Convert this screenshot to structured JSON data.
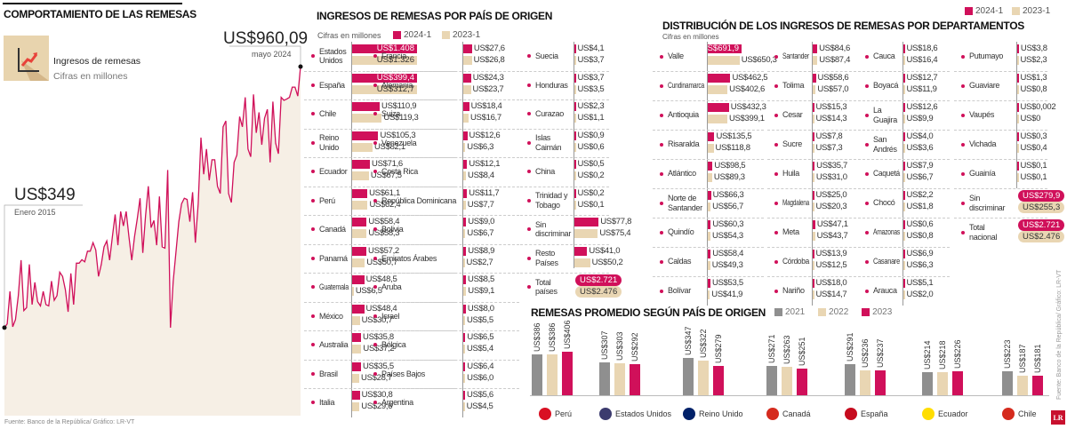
{
  "colors": {
    "y2024": "#d0105a",
    "y2023": "#e9d6b3",
    "gray": "#8f8f8f",
    "area": "#f6efe5",
    "line": "#d0105a"
  },
  "left": {
    "title": "COMPORTAMIENTO DE LAS REMESAS",
    "icon": "chart-up-icon",
    "legend_title": "Ingresos de remesas",
    "legend_sub": "Cifras en millones",
    "start_value": "US$349",
    "start_label": "Enero 2015",
    "end_value": "US$960,09",
    "end_label": "mayo 2024",
    "source": "Fuente: Banco de la República/ Gráfico: LR-VT"
  },
  "chart_data": [
    {
      "type": "area",
      "title": "COMPORTAMIENTO DE LAS REMESAS",
      "ylabel": "Cifras en millones",
      "x_start": "Enero 2015",
      "x_end": "mayo 2024",
      "ylim": [
        143,
        960
      ],
      "values": [
        349,
        358,
        434,
        351,
        368,
        424,
        507,
        389,
        396,
        497,
        403,
        455,
        410,
        400,
        434,
        403,
        400,
        458,
        413,
        424,
        479,
        469,
        438,
        386,
        476,
        403,
        500,
        500,
        508,
        503,
        528,
        528,
        548,
        531,
        469,
        497,
        538,
        552,
        507,
        562,
        614,
        542,
        621,
        587,
        621,
        562,
        507,
        562,
        604,
        652,
        524,
        611,
        680,
        583,
        600,
        542,
        656,
        538,
        535,
        718,
        349,
        458,
        528,
        597,
        639,
        652,
        649,
        597,
        666,
        548,
        639,
        794,
        708,
        767,
        694,
        742,
        742,
        680,
        663,
        819,
        833,
        663,
        642,
        736,
        753,
        843,
        819,
        888,
        767,
        749,
        895,
        805,
        853,
        777,
        839,
        860,
        736,
        878,
        781,
        756,
        888,
        881,
        884,
        888,
        912,
        912,
        891,
        960.09
      ]
    },
    {
      "type": "bar",
      "title": "INGRESOS DE REMESAS POR PAÍS DE ORIGEN",
      "subtitle": "Cifras en millones",
      "series_names": [
        "2024-1",
        "2023-1"
      ],
      "columns": [
        [
          {
            "name": "Estados Unidos",
            "a": 1408,
            "b": 1326,
            "la": "US$1.408",
            "lb": "US$1.326"
          },
          {
            "name": "España",
            "a": 399.4,
            "b": 312.7,
            "la": "US$399,4",
            "lb": "US$312,7"
          },
          {
            "name": "Chile",
            "a": 110.9,
            "b": 119.3,
            "la": "US$110,9",
            "lb": "US$119,3"
          },
          {
            "name": "Reino Unido",
            "a": 105.3,
            "b": 82.1,
            "la": "US$105,3",
            "lb": "US$82,1"
          },
          {
            "name": "Ecuador",
            "a": 71.6,
            "b": 67.5,
            "la": "US$71,6",
            "lb": "US$67,5"
          },
          {
            "name": "Perú",
            "a": 61.1,
            "b": 62.4,
            "la": "US$61,1",
            "lb": "US$62,4"
          },
          {
            "name": "Canadá",
            "a": 58.4,
            "b": 58.3,
            "la": "US$58,4",
            "lb": "US$58,3"
          },
          {
            "name": "Panamá",
            "a": 57.2,
            "b": 50.7,
            "la": "US$57,2",
            "lb": "US$50,7"
          },
          {
            "name": "Guatemala",
            "a": 48.5,
            "b": 6.5,
            "la": "US$48,5",
            "lb": "US$6,5"
          },
          {
            "name": "México",
            "a": 48.4,
            "b": 30.7,
            "la": "US$48,4",
            "lb": "US$30,7"
          },
          {
            "name": "Australia",
            "a": 35.8,
            "b": 37.2,
            "la": "US$35,8",
            "lb": "US$37,2"
          },
          {
            "name": "Brasil",
            "a": 35.5,
            "b": 28.7,
            "la": "US$35,5",
            "lb": "US$28,7"
          },
          {
            "name": "Italia",
            "a": 30.8,
            "b": 29.6,
            "la": "US$30,8",
            "lb": "US$29,6"
          }
        ],
        [
          {
            "name": "Francia",
            "a": 27.6,
            "b": 26.8,
            "la": "US$27,6",
            "lb": "US$26,8"
          },
          {
            "name": "Alemania",
            "a": 24.3,
            "b": 23.7,
            "la": "US$24,3",
            "lb": "US$23,7"
          },
          {
            "name": "Suiza",
            "a": 18.4,
            "b": 16.7,
            "la": "US$18,4",
            "lb": "US$16,7"
          },
          {
            "name": "Venezuela",
            "a": 12.6,
            "b": 6.3,
            "la": "US$12,6",
            "lb": "US$6,3"
          },
          {
            "name": "Costa Rica",
            "a": 12.1,
            "b": 8.4,
            "la": "US$12,1",
            "lb": "US$8,4"
          },
          {
            "name": "República Dominicana",
            "a": 11.7,
            "b": 7.7,
            "la": "US$11,7",
            "lb": "US$7,7"
          },
          {
            "name": "Bolivia",
            "a": 9.0,
            "b": 6.7,
            "la": "US$9,0",
            "lb": "US$6,7"
          },
          {
            "name": "Emiratos Árabes",
            "a": 8.9,
            "b": 2.7,
            "la": "US$8,9",
            "lb": "US$2,7"
          },
          {
            "name": "Aruba",
            "a": 8.5,
            "b": 9.1,
            "la": "US$8,5",
            "lb": "US$9,1"
          },
          {
            "name": "Israel",
            "a": 8.0,
            "b": 5.5,
            "la": "US$8,0",
            "lb": "US$5,5"
          },
          {
            "name": "Bélgica",
            "a": 6.5,
            "b": 5.4,
            "la": "US$6,5",
            "lb": "US$5,4"
          },
          {
            "name": "Países Bajos",
            "a": 6.4,
            "b": 6.0,
            "la": "US$6,4",
            "lb": "US$6,0"
          },
          {
            "name": "Argentina",
            "a": 5.6,
            "b": 4.5,
            "la": "US$5,6",
            "lb": "US$4,5"
          }
        ],
        [
          {
            "name": "Suecia",
            "a": 4.1,
            "b": 3.7,
            "la": "US$4,1",
            "lb": "US$3,7"
          },
          {
            "name": "Honduras",
            "a": 3.7,
            "b": 3.5,
            "la": "US$3,7",
            "lb": "US$3,5"
          },
          {
            "name": "Curazao",
            "a": 2.3,
            "b": 1.1,
            "la": "US$2,3",
            "lb": "US$1,1"
          },
          {
            "name": "Islas Caimán",
            "a": 0.9,
            "b": 0.6,
            "la": "US$0,9",
            "lb": "US$0,6"
          },
          {
            "name": "China",
            "a": 0.5,
            "b": 0.2,
            "la": "US$0,5",
            "lb": "US$0,2"
          },
          {
            "name": "Trinidad y Tobago",
            "a": 0.2,
            "b": 0.1,
            "la": "US$0,2",
            "lb": "US$0,1"
          },
          {
            "name": "Sin discriminar",
            "a": 77.8,
            "b": 75.4,
            "la": "US$77,8",
            "lb": "US$75,4"
          },
          {
            "name": "Resto Países",
            "a": 41.0,
            "b": 50.2,
            "la": "US$41,0",
            "lb": "US$50,2"
          },
          {
            "name": "Total países",
            "a": 2721,
            "b": 2476,
            "la": "US$2.721",
            "lb": "US$2.476",
            "pill": true
          }
        ]
      ]
    },
    {
      "type": "bar",
      "title": "DISTRIBUCIÓN DE LOS INGRESOS DE REMESAS POR DEPARTAMENTOS",
      "subtitle": "Cifras en millones",
      "series_names": [
        "2024-1",
        "2023-1"
      ],
      "columns": [
        [
          {
            "name": "Valle",
            "a": 691.9,
            "b": 650.3,
            "la": "US$691,9",
            "lb": "US$650,3"
          },
          {
            "name": "Cundinamarca",
            "a": 462.5,
            "b": 402.6,
            "la": "US$462,5",
            "lb": "US$402,6"
          },
          {
            "name": "Antioquia",
            "a": 432.3,
            "b": 399.1,
            "la": "US$432,3",
            "lb": "US$399,1"
          },
          {
            "name": "Risaralda",
            "a": 135.5,
            "b": 118.8,
            "la": "US$135,5",
            "lb": "US$118,8"
          },
          {
            "name": "Atlántico",
            "a": 98.5,
            "b": 89.3,
            "la": "US$98,5",
            "lb": "US$89,3"
          },
          {
            "name": "Norte de Santander",
            "a": 66.3,
            "b": 56.7,
            "la": "US$66,3",
            "lb": "US$56,7"
          },
          {
            "name": "Quindío",
            "a": 60.3,
            "b": 54.3,
            "la": "US$60,3",
            "lb": "US$54,3"
          },
          {
            "name": "Caldas",
            "a": 58.4,
            "b": 49.3,
            "la": "US$58,4",
            "lb": "US$49,3"
          },
          {
            "name": "Bolívar",
            "a": 53.5,
            "b": 41.9,
            "la": "US$53,5",
            "lb": "US$41,9"
          }
        ],
        [
          {
            "name": "Santander",
            "a": 84.6,
            "b": 87.4,
            "la": "US$84,6",
            "lb": "US$87,4"
          },
          {
            "name": "Tolima",
            "a": 58.6,
            "b": 57.0,
            "la": "US$58,6",
            "lb": "US$57,0"
          },
          {
            "name": "Cesar",
            "a": 15.3,
            "b": 14.3,
            "la": "US$15,3",
            "lb": "US$14,3"
          },
          {
            "name": "Sucre",
            "a": 7.8,
            "b": 7.3,
            "la": "US$7,8",
            "lb": "US$7,3"
          },
          {
            "name": "Huila",
            "a": 35.7,
            "b": 31.0,
            "la": "US$35,7",
            "lb": "US$31,0"
          },
          {
            "name": "Magdalena",
            "a": 25.0,
            "b": 20.3,
            "la": "US$25,0",
            "lb": "US$20,3"
          },
          {
            "name": "Meta",
            "a": 47.1,
            "b": 43.7,
            "la": "US$47,1",
            "lb": "US$43,7"
          },
          {
            "name": "Córdoba",
            "a": 13.9,
            "b": 12.5,
            "la": "US$13,9",
            "lb": "US$12,5"
          },
          {
            "name": "Nariño",
            "a": 18.0,
            "b": 14.7,
            "la": "US$18,0",
            "lb": "US$14,7"
          }
        ],
        [
          {
            "name": "Cauca",
            "a": 18.6,
            "b": 16.4,
            "la": "US$18,6",
            "lb": "US$16,4"
          },
          {
            "name": "Boyacá",
            "a": 12.7,
            "b": 11.9,
            "la": "US$12,7",
            "lb": "US$11,9"
          },
          {
            "name": "La Guajira",
            "a": 12.6,
            "b": 9.9,
            "la": "US$12,6",
            "lb": "US$9,9"
          },
          {
            "name": "San Andrés",
            "a": 4.0,
            "b": 3.6,
            "la": "US$4,0",
            "lb": "US$3,6"
          },
          {
            "name": "Caquetá",
            "a": 7.9,
            "b": 6.7,
            "la": "US$7,9",
            "lb": "US$6,7"
          },
          {
            "name": "Chocó",
            "a": 2.2,
            "b": 1.8,
            "la": "US$2,2",
            "lb": "US$1,8"
          },
          {
            "name": "Amazonas",
            "a": 0.6,
            "b": 0.8,
            "la": "US$0,6",
            "lb": "US$0,8"
          },
          {
            "name": "Casanare",
            "a": 6.9,
            "b": 6.3,
            "la": "US$6,9",
            "lb": "US$6,3"
          },
          {
            "name": "Arauca",
            "a": 5.1,
            "b": 2.0,
            "la": "US$5,1",
            "lb": "US$2,0"
          }
        ],
        [
          {
            "name": "Putumayo",
            "a": 3.8,
            "b": 2.3,
            "la": "US$3,8",
            "lb": "US$2,3"
          },
          {
            "name": "Guaviare",
            "a": 1.3,
            "b": 0.8,
            "la": "US$1,3",
            "lb": "US$0,8"
          },
          {
            "name": "Vaupés",
            "a": 0.002,
            "b": 0,
            "la": "US$0,002",
            "lb": "US$0"
          },
          {
            "name": "Vichada",
            "a": 0.3,
            "b": 0.4,
            "la": "US$0,3",
            "lb": "US$0,4"
          },
          {
            "name": "Guainía",
            "a": 0.1,
            "b": 0.1,
            "la": "US$0,1",
            "lb": "US$0,1"
          },
          {
            "name": "Sin discriminar",
            "a": 279.9,
            "b": 255.3,
            "la": "US$279,9",
            "lb": "US$255,3",
            "pill": true
          },
          {
            "name": "Total nacional",
            "a": 2721,
            "b": 2476,
            "la": "US$2.721",
            "lb": "US$2.476",
            "pill": true
          }
        ]
      ]
    },
    {
      "type": "bar",
      "title": "REMESAS PROMEDIO SEGÚN PAÍS DE ORIGEN",
      "series": [
        {
          "name": "2021"
        },
        {
          "name": "2022"
        },
        {
          "name": "2023"
        }
      ],
      "groups": [
        {
          "name": "Perú",
          "flag": "peru-flag-icon",
          "values": [
            386,
            386,
            406
          ],
          "labels": [
            "US$386",
            "US$386",
            "US$406"
          ]
        },
        {
          "name": "Estados Unidos",
          "flag": "usa-flag-icon",
          "values": [
            307,
            303,
            292
          ],
          "labels": [
            "US$307",
            "US$303",
            "US$292"
          ]
        },
        {
          "name": "Reino Unido",
          "flag": "uk-flag-icon",
          "values": [
            347,
            322,
            279
          ],
          "labels": [
            "US$347",
            "US$322",
            "US$279"
          ]
        },
        {
          "name": "Canadá",
          "flag": "canada-flag-icon",
          "values": [
            271,
            263,
            251
          ],
          "labels": [
            "US$271",
            "US$263",
            "US$251"
          ]
        },
        {
          "name": "España",
          "flag": "spain-flag-icon",
          "values": [
            291,
            236,
            237
          ],
          "labels": [
            "US$291",
            "US$236",
            "US$237"
          ]
        },
        {
          "name": "Ecuador",
          "flag": "ecuador-flag-icon",
          "values": [
            214,
            218,
            226
          ],
          "labels": [
            "US$214",
            "US$218",
            "US$226"
          ]
        },
        {
          "name": "Chile",
          "flag": "chile-flag-icon",
          "values": [
            223,
            187,
            181
          ],
          "labels": [
            "US$223",
            "US$187",
            "US$181"
          ]
        }
      ]
    }
  ],
  "right_source": "Fuente: Banco de la República/ Gráfico: LR-VT",
  "logo": "LR"
}
